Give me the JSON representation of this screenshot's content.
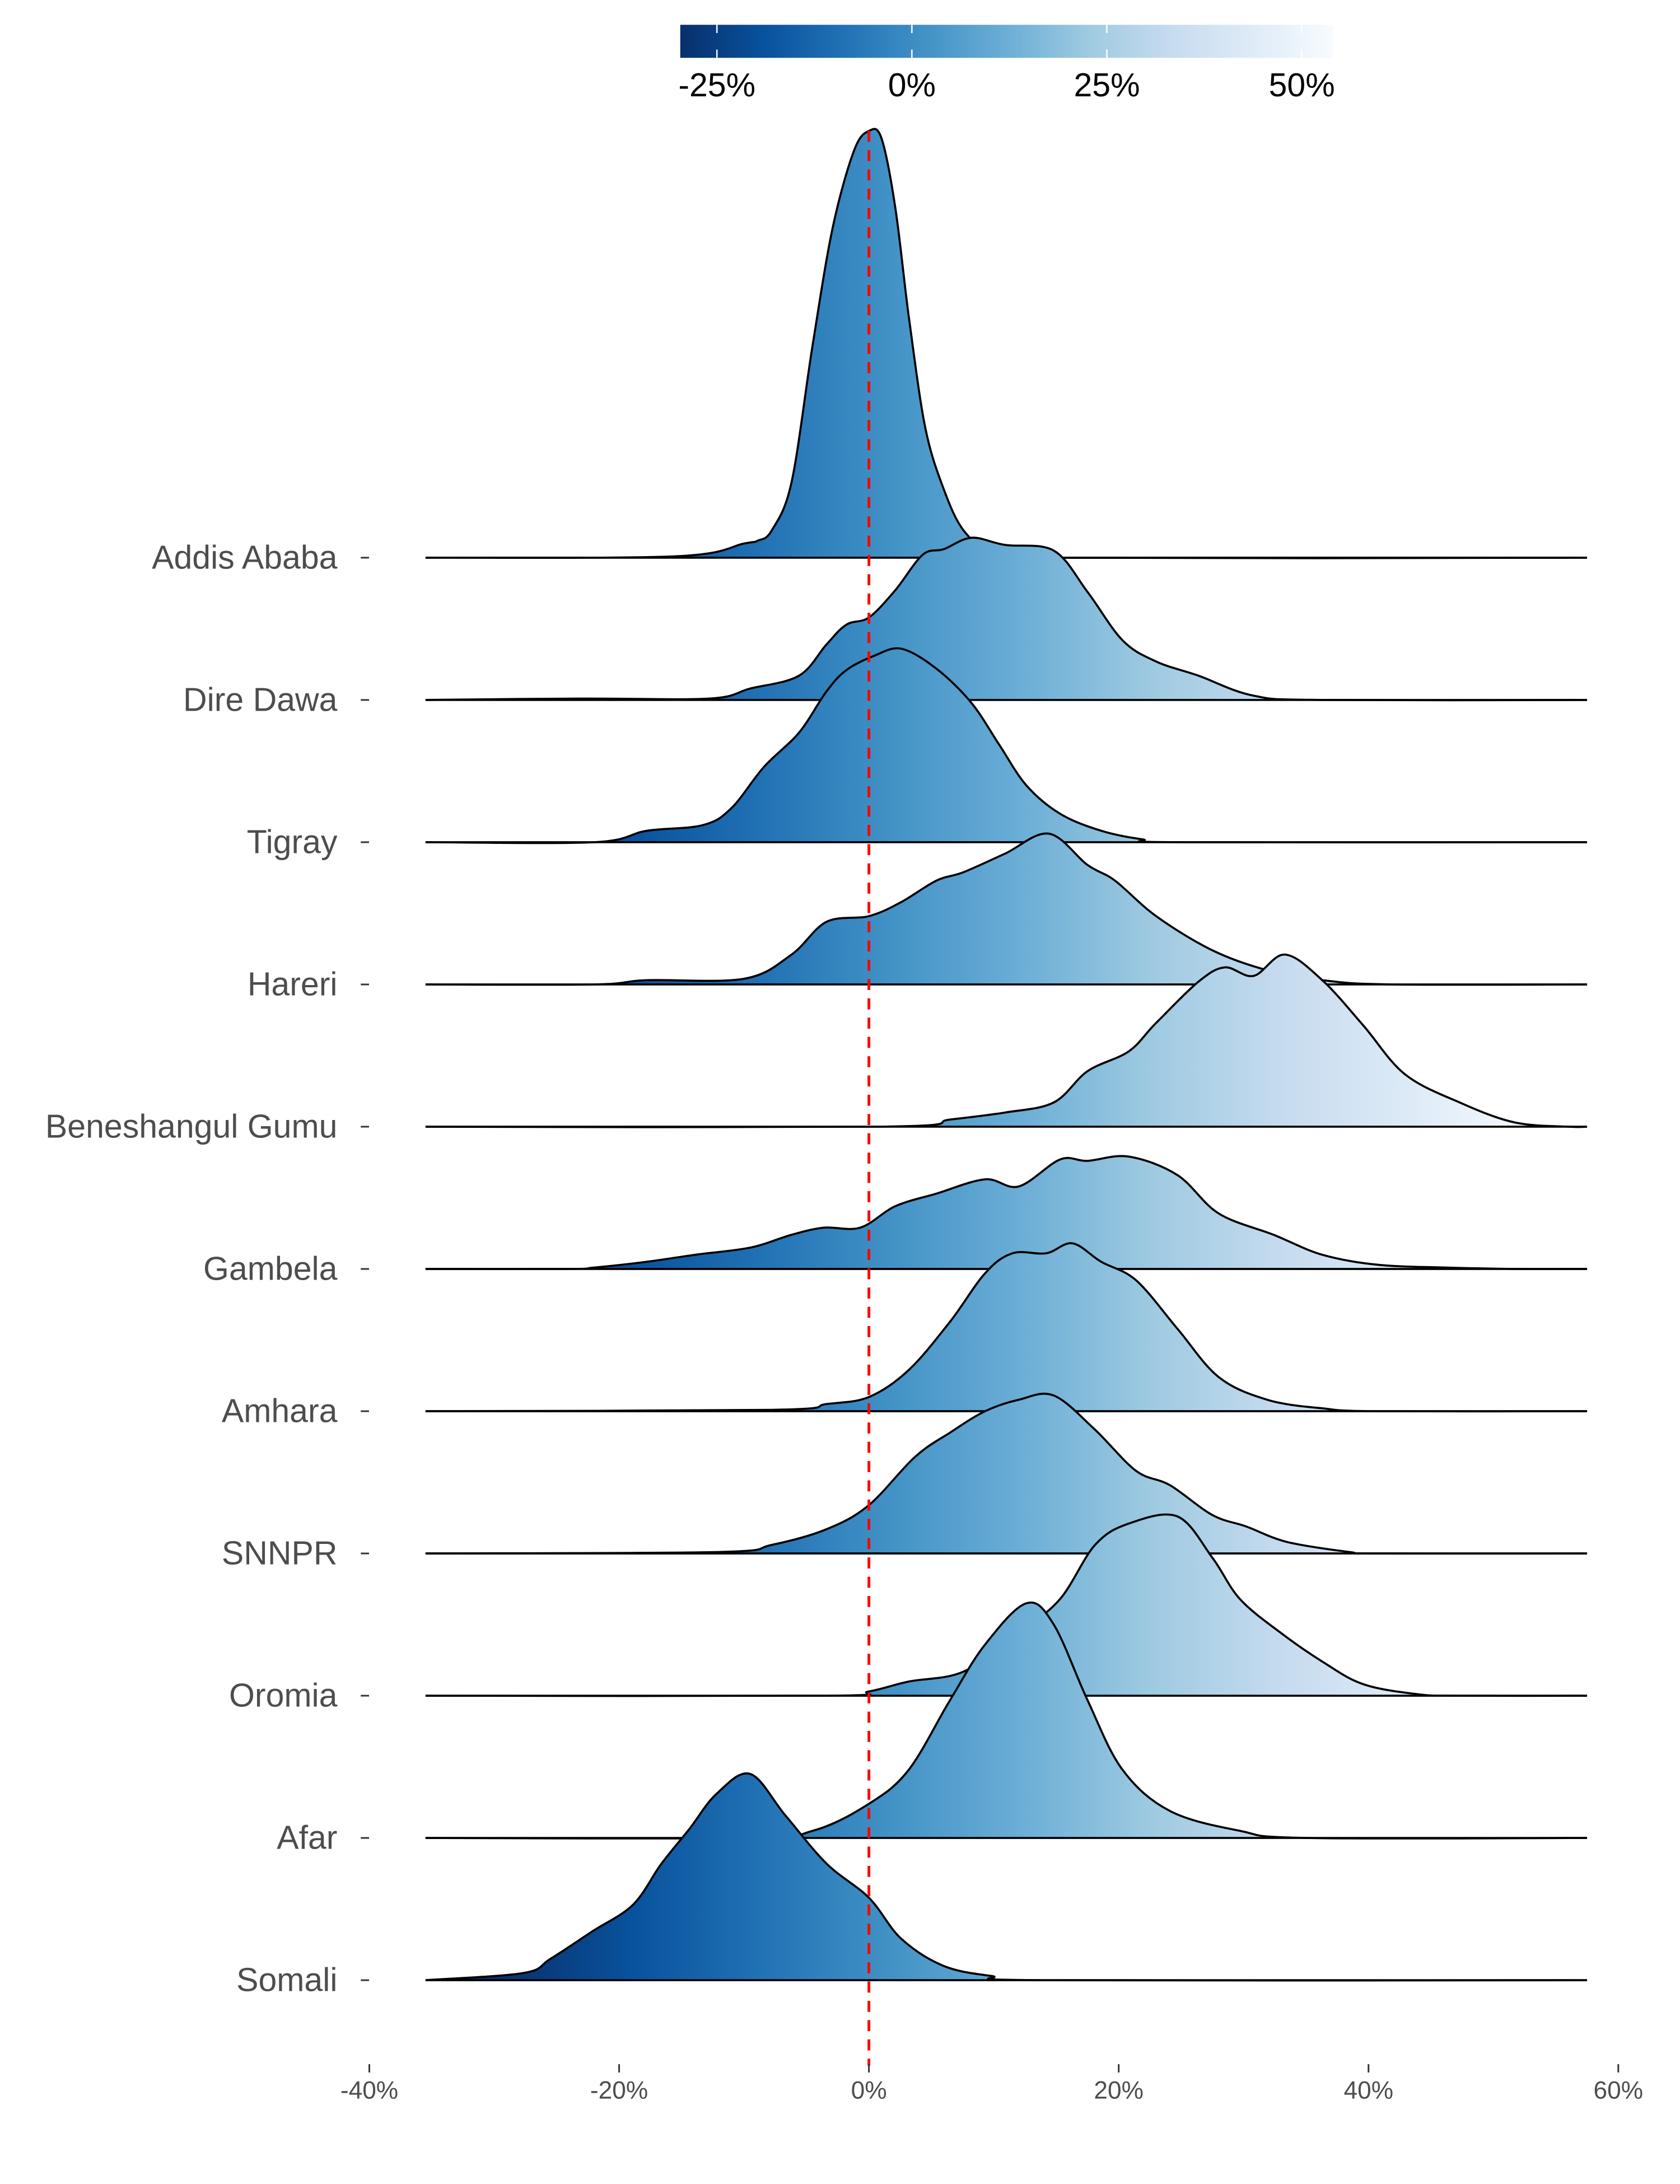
{
  "chart_data": {
    "type": "ridgeline",
    "title": "",
    "xlabel": "",
    "ylabel": "",
    "xlim": [
      -40,
      60
    ],
    "x_ticks": [
      -40,
      -20,
      0,
      20,
      40,
      60
    ],
    "x_tick_labels": [
      "-40%",
      "-20%",
      "0%",
      "20%",
      "40%",
      "60%"
    ],
    "reference_line": {
      "x": 0,
      "style": "dashed",
      "color": "#ff0000"
    },
    "colorbar": {
      "range": [
        -29.7,
        54
      ],
      "ticks": [
        -25,
        0,
        25,
        50
      ],
      "tick_labels": [
        "-25%",
        "0%",
        "25%",
        "50%"
      ],
      "palette": [
        "#08306b",
        "#08519c",
        "#2171b5",
        "#4292c6",
        "#6baed6",
        "#9ecae1",
        "#c6dbef",
        "#deebf7",
        "#f7fbff"
      ],
      "placement": "top"
    },
    "x_support": [
      -35.5,
      57.5
    ],
    "series": [
      {
        "name": "Addis Ababa",
        "points": [
          [
            -15.5,
            0.01
          ],
          [
            -10,
            0.1
          ],
          [
            -8.9,
            0.12
          ],
          [
            -7.8,
            0.19
          ],
          [
            -6.2,
            0.53
          ],
          [
            -4.5,
            1.5
          ],
          [
            -2.9,
            2.32
          ],
          [
            -1.2,
            2.86
          ],
          [
            0,
            3.0
          ],
          [
            1.0,
            2.95
          ],
          [
            2.1,
            2.47
          ],
          [
            3.2,
            1.69
          ],
          [
            4.5,
            0.92
          ],
          [
            6.0,
            0.48
          ],
          [
            7.6,
            0.19
          ],
          [
            9.8,
            0.05
          ],
          [
            14,
            0
          ]
        ]
      },
      {
        "name": "Dire Dawa",
        "points": [
          [
            -23,
            0.01
          ],
          [
            -12.8,
            0.01
          ],
          [
            -9.5,
            0.08
          ],
          [
            -5.6,
            0.17
          ],
          [
            -3.4,
            0.39
          ],
          [
            -1.8,
            0.53
          ],
          [
            0,
            0.58
          ],
          [
            2.1,
            0.77
          ],
          [
            4.3,
            1.02
          ],
          [
            6,
            1.06
          ],
          [
            8.2,
            1.14
          ],
          [
            10.9,
            1.09
          ],
          [
            14.8,
            1.05
          ],
          [
            17.5,
            0.76
          ],
          [
            20.3,
            0.42
          ],
          [
            23,
            0.27
          ],
          [
            26.4,
            0.17
          ],
          [
            30.8,
            0.03
          ],
          [
            36.3,
            0
          ]
        ]
      },
      {
        "name": "Tigray",
        "points": [
          [
            -22,
            0
          ],
          [
            -17.8,
            0.08
          ],
          [
            -13.3,
            0.12
          ],
          [
            -11,
            0.24
          ],
          [
            -8.4,
            0.53
          ],
          [
            -5.6,
            0.77
          ],
          [
            -3.4,
            1.06
          ],
          [
            -1.8,
            1.21
          ],
          [
            0.4,
            1.31
          ],
          [
            2.6,
            1.36
          ],
          [
            5.4,
            1.22
          ],
          [
            8.2,
            0.98
          ],
          [
            10.4,
            0.69
          ],
          [
            12.6,
            0.4
          ],
          [
            15.3,
            0.2
          ],
          [
            18.6,
            0.08
          ],
          [
            21.9,
            0.02
          ],
          [
            25,
            0
          ]
        ]
      },
      {
        "name": "Hareri",
        "points": [
          [
            -22,
            0
          ],
          [
            -17.8,
            0.03
          ],
          [
            -10,
            0.04
          ],
          [
            -6.2,
            0.21
          ],
          [
            -3.4,
            0.44
          ],
          [
            0,
            0.48
          ],
          [
            2.6,
            0.58
          ],
          [
            5.4,
            0.73
          ],
          [
            7.6,
            0.79
          ],
          [
            10.9,
            0.92
          ],
          [
            14.4,
            1.06
          ],
          [
            17.5,
            0.84
          ],
          [
            19.7,
            0.73
          ],
          [
            23,
            0.48
          ],
          [
            27.5,
            0.24
          ],
          [
            31.9,
            0.1
          ],
          [
            36.3,
            0.03
          ],
          [
            41.8,
            0
          ]
        ]
      },
      {
        "name": "Beneshangul Gumu",
        "points": [
          [
            1,
            0
          ],
          [
            6.5,
            0.05
          ],
          [
            10.9,
            0.1
          ],
          [
            14.8,
            0.17
          ],
          [
            17.5,
            0.39
          ],
          [
            20.8,
            0.53
          ],
          [
            23,
            0.73
          ],
          [
            26.4,
            1.02
          ],
          [
            28.5,
            1.12
          ],
          [
            30.8,
            1.06
          ],
          [
            33.3,
            1.21
          ],
          [
            36.3,
            1.03
          ],
          [
            39.6,
            0.71
          ],
          [
            42.9,
            0.37
          ],
          [
            47.3,
            0.17
          ],
          [
            51.7,
            0.03
          ],
          [
            56,
            0
          ]
        ]
      },
      {
        "name": "Gambela",
        "points": [
          [
            -24,
            0
          ],
          [
            -22,
            0.01
          ],
          [
            -17.8,
            0.05
          ],
          [
            -13.9,
            0.1
          ],
          [
            -9.5,
            0.15
          ],
          [
            -6.2,
            0.24
          ],
          [
            -3.6,
            0.29
          ],
          [
            -0.7,
            0.29
          ],
          [
            2.1,
            0.44
          ],
          [
            5.4,
            0.53
          ],
          [
            9.3,
            0.63
          ],
          [
            12,
            0.58
          ],
          [
            15.3,
            0.77
          ],
          [
            17.5,
            0.76
          ],
          [
            20.8,
            0.79
          ],
          [
            24.7,
            0.66
          ],
          [
            28,
            0.39
          ],
          [
            32.4,
            0.24
          ],
          [
            36.3,
            0.1
          ],
          [
            40.7,
            0.03
          ],
          [
            46.2,
            0.01
          ],
          [
            51.7,
            0
          ]
        ]
      },
      {
        "name": "Amhara",
        "points": [
          [
            -7.8,
            0.01
          ],
          [
            -3.4,
            0.05
          ],
          [
            0,
            0.1
          ],
          [
            3.2,
            0.29
          ],
          [
            6.5,
            0.63
          ],
          [
            9.3,
            0.97
          ],
          [
            11.5,
            1.11
          ],
          [
            14.2,
            1.11
          ],
          [
            16.3,
            1.18
          ],
          [
            18.6,
            1.05
          ],
          [
            21.4,
            0.92
          ],
          [
            24.7,
            0.58
          ],
          [
            28,
            0.24
          ],
          [
            31.9,
            0.08
          ],
          [
            36.3,
            0.02
          ],
          [
            40.7,
            0
          ]
        ]
      },
      {
        "name": "SNNPR",
        "points": [
          [
            -12.2,
            0.01
          ],
          [
            -7.8,
            0.06
          ],
          [
            -3.4,
            0.17
          ],
          [
            0,
            0.34
          ],
          [
            3.7,
            0.68
          ],
          [
            6.5,
            0.85
          ],
          [
            9.3,
            1.0
          ],
          [
            12,
            1.08
          ],
          [
            14.8,
            1.11
          ],
          [
            18.1,
            0.87
          ],
          [
            21.4,
            0.58
          ],
          [
            24.1,
            0.48
          ],
          [
            27.5,
            0.27
          ],
          [
            30.2,
            0.19
          ],
          [
            33.5,
            0.08
          ],
          [
            38.5,
            0.01
          ],
          [
            40.7,
            0
          ]
        ]
      },
      {
        "name": "Oromia",
        "points": [
          [
            -3.4,
            0
          ],
          [
            0,
            0.03
          ],
          [
            3.2,
            0.1
          ],
          [
            7.6,
            0.17
          ],
          [
            12,
            0.44
          ],
          [
            15.3,
            0.68
          ],
          [
            18.1,
            1.06
          ],
          [
            20.8,
            1.21
          ],
          [
            24.7,
            1.26
          ],
          [
            27.5,
            0.97
          ],
          [
            29.7,
            0.68
          ],
          [
            33,
            0.44
          ],
          [
            36.3,
            0.24
          ],
          [
            39.6,
            0.08
          ],
          [
            44,
            0.01
          ],
          [
            47.3,
            0
          ]
        ]
      },
      {
        "name": "Afar",
        "points": [
          [
            -10,
            0
          ],
          [
            -4.5,
            0.05
          ],
          [
            0,
            0.24
          ],
          [
            3.2,
            0.48
          ],
          [
            6.5,
            0.97
          ],
          [
            9.3,
            1.36
          ],
          [
            12.6,
            1.65
          ],
          [
            14.8,
            1.5
          ],
          [
            17.5,
            0.97
          ],
          [
            20.3,
            0.48
          ],
          [
            24.1,
            0.19
          ],
          [
            29.7,
            0.05
          ],
          [
            35,
            0
          ]
        ]
      },
      {
        "name": "Somali",
        "points": [
          [
            -35.5,
            0
          ],
          [
            -27.7,
            0.05
          ],
          [
            -25.5,
            0.15
          ],
          [
            -22.2,
            0.34
          ],
          [
            -18.9,
            0.53
          ],
          [
            -16.6,
            0.82
          ],
          [
            -14.4,
            1.06
          ],
          [
            -12.2,
            1.31
          ],
          [
            -9.5,
            1.45
          ],
          [
            -6.7,
            1.16
          ],
          [
            -3.4,
            0.82
          ],
          [
            0,
            0.58
          ],
          [
            2.6,
            0.29
          ],
          [
            6,
            0.1
          ],
          [
            9.8,
            0.03
          ],
          [
            14.2,
            0
          ]
        ]
      }
    ]
  }
}
